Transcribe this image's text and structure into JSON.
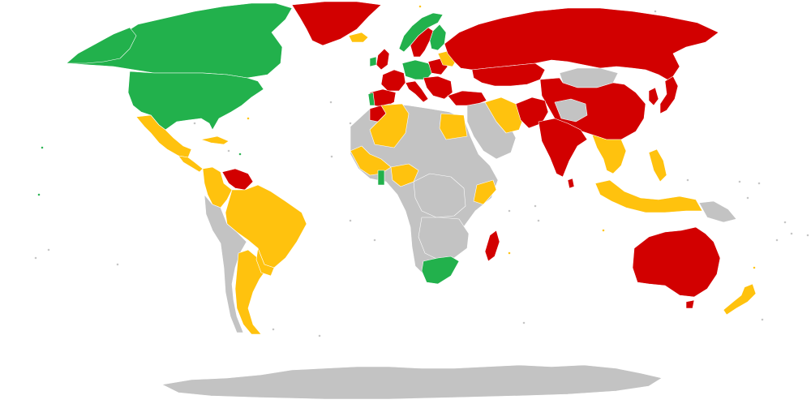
{
  "map": {
    "projection": "world",
    "colors": {
      "green": "#22b14c",
      "yellow": "#ffc20e",
      "red": "#d20000",
      "grey": "#c3c3c3",
      "background": "#ffffff",
      "border": "#ffffff"
    },
    "regions": [
      {
        "name": "canada-region",
        "fill": "green"
      },
      {
        "name": "usa-region",
        "fill": "green"
      },
      {
        "name": "alaska-region",
        "fill": "green"
      },
      {
        "name": "greenland-region",
        "fill": "red"
      },
      {
        "name": "iceland-region",
        "fill": "yellow"
      },
      {
        "name": "mexico-region",
        "fill": "yellow"
      },
      {
        "name": "central-america-region",
        "fill": "yellow"
      },
      {
        "name": "caribbean-region",
        "fill": "yellow"
      },
      {
        "name": "colombia-region",
        "fill": "yellow"
      },
      {
        "name": "venezuela-region",
        "fill": "red"
      },
      {
        "name": "brazil-region",
        "fill": "yellow"
      },
      {
        "name": "peru-bolivia-chile-region",
        "fill": "grey"
      },
      {
        "name": "argentina-region",
        "fill": "yellow"
      },
      {
        "name": "paraguay-uruguay-region",
        "fill": "yellow"
      },
      {
        "name": "norway-region",
        "fill": "green"
      },
      {
        "name": "sweden-region",
        "fill": "red"
      },
      {
        "name": "finland-region",
        "fill": "green"
      },
      {
        "name": "uk-region",
        "fill": "red"
      },
      {
        "name": "ireland-region",
        "fill": "green"
      },
      {
        "name": "iberia-region",
        "fill": "red"
      },
      {
        "name": "portugal-region",
        "fill": "green"
      },
      {
        "name": "france-region",
        "fill": "red"
      },
      {
        "name": "central-europe-region",
        "fill": "green"
      },
      {
        "name": "poland-region",
        "fill": "red"
      },
      {
        "name": "italy-region",
        "fill": "red"
      },
      {
        "name": "balkans-region",
        "fill": "red"
      },
      {
        "name": "belarus-region",
        "fill": "yellow"
      },
      {
        "name": "russia-region",
        "fill": "red"
      },
      {
        "name": "kazakhstan-region",
        "fill": "red"
      },
      {
        "name": "mongolia-region",
        "fill": "grey"
      },
      {
        "name": "china-region",
        "fill": "red"
      },
      {
        "name": "west-china-region",
        "fill": "grey"
      },
      {
        "name": "japan-region",
        "fill": "red"
      },
      {
        "name": "korea-region",
        "fill": "red"
      },
      {
        "name": "turkey-region",
        "fill": "red"
      },
      {
        "name": "middle-east-region",
        "fill": "grey"
      },
      {
        "name": "iran-region",
        "fill": "yellow"
      },
      {
        "name": "pakistan-afghanistan-region",
        "fill": "red"
      },
      {
        "name": "india-region",
        "fill": "red"
      },
      {
        "name": "sri-lanka-region",
        "fill": "red"
      },
      {
        "name": "southeast-asia-region",
        "fill": "yellow"
      },
      {
        "name": "philippines-region",
        "fill": "yellow"
      },
      {
        "name": "indonesia-region",
        "fill": "yellow"
      },
      {
        "name": "new-guinea-region",
        "fill": "grey"
      },
      {
        "name": "australia-region",
        "fill": "red"
      },
      {
        "name": "tasmania-region",
        "fill": "red"
      },
      {
        "name": "new-zealand-region",
        "fill": "yellow"
      },
      {
        "name": "north-africa-region",
        "fill": "grey"
      },
      {
        "name": "morocco-region",
        "fill": "red"
      },
      {
        "name": "algeria-region",
        "fill": "yellow"
      },
      {
        "name": "egypt-region",
        "fill": "yellow"
      },
      {
        "name": "west-africa-region",
        "fill": "yellow"
      },
      {
        "name": "ghana-region",
        "fill": "green"
      },
      {
        "name": "nigeria-region",
        "fill": "yellow"
      },
      {
        "name": "central-africa-region",
        "fill": "grey"
      },
      {
        "name": "kenya-somalia-region",
        "fill": "yellow"
      },
      {
        "name": "southern-africa-region",
        "fill": "grey"
      },
      {
        "name": "south-africa-region",
        "fill": "green"
      },
      {
        "name": "madagascar-region",
        "fill": "red"
      },
      {
        "name": "antarctica-region",
        "fill": "grey"
      }
    ]
  }
}
